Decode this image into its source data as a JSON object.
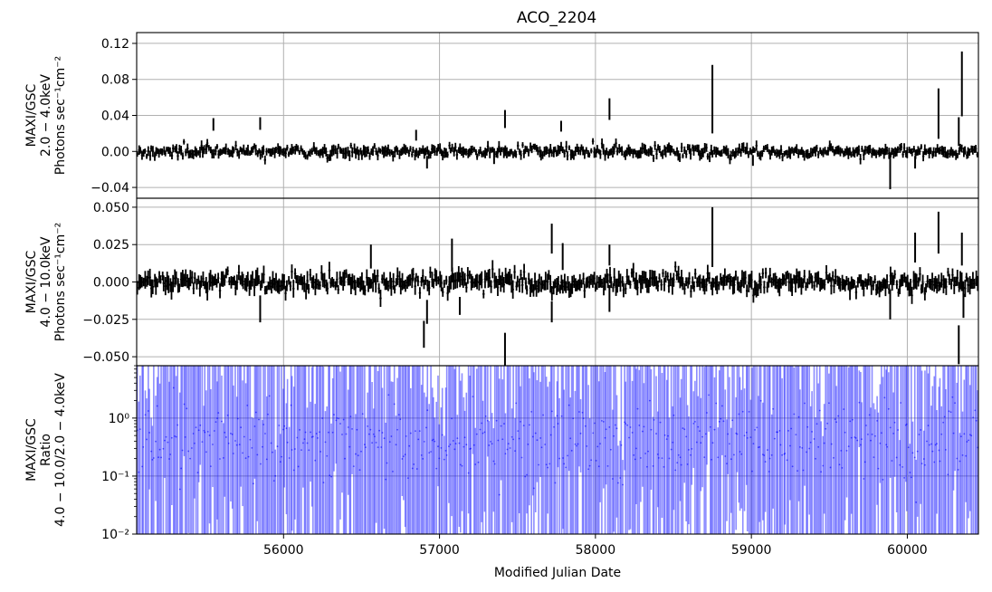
{
  "chart_data": [
    {
      "type": "scatter",
      "panel": "top",
      "title": "ACO_2204",
      "ylabel_lines": [
        "MAXI/GSC",
        "2.0 − 4.0keV",
        "Photons sec⁻¹cm⁻²"
      ],
      "xlim": [
        55058,
        60456
      ],
      "ylim": [
        -0.052,
        0.132
      ],
      "yticks": [
        -0.04,
        0.0,
        0.04,
        0.08,
        0.12
      ],
      "ytick_labels": [
        "−0.04",
        "0.00",
        "0.04",
        "0.08",
        "0.12"
      ],
      "grid": true,
      "series": [
        {
          "color": "#000000",
          "noise": {
            "seed": 11,
            "n": 540,
            "sigma": 0.003,
            "err": 0.0045,
            "spread": 0.003
          },
          "highlight_points": [
            {
              "x": 55550,
              "y": 0.03,
              "err": 0.007
            },
            {
              "x": 55850,
              "y": 0.031,
              "err": 0.007
            },
            {
              "x": 56850,
              "y": 0.018,
              "err": 0.006
            },
            {
              "x": 56920,
              "y": -0.012,
              "err": 0.007
            },
            {
              "x": 57350,
              "y": -0.008,
              "err": 0.006
            },
            {
              "x": 57420,
              "y": 0.036,
              "err": 0.01
            },
            {
              "x": 57780,
              "y": 0.028,
              "err": 0.006
            },
            {
              "x": 58090,
              "y": 0.047,
              "err": 0.012
            },
            {
              "x": 58750,
              "y": 0.058,
              "err": 0.038
            },
            {
              "x": 59010,
              "y": -0.01,
              "err": 0.006
            },
            {
              "x": 59890,
              "y": -0.022,
              "err": 0.02
            },
            {
              "x": 60050,
              "y": -0.012,
              "err": 0.007
            },
            {
              "x": 60200,
              "y": 0.042,
              "err": 0.028
            },
            {
              "x": 60330,
              "y": 0.022,
              "err": 0.016
            },
            {
              "x": 60350,
              "y": 0.075,
              "err": 0.036
            }
          ]
        }
      ]
    },
    {
      "type": "scatter",
      "panel": "middle",
      "ylabel_lines": [
        "MAXI/GSC",
        "4.0 − 10.0keV",
        "Photons sec⁻¹cm⁻²"
      ],
      "xlim": [
        55058,
        60456
      ],
      "ylim": [
        -0.056,
        0.056
      ],
      "yticks": [
        -0.05,
        -0.025,
        0.0,
        0.025,
        0.05
      ],
      "ytick_labels": [
        "−0.050",
        "−0.025",
        "0.000",
        "0.025",
        "0.050"
      ],
      "grid": true,
      "series": [
        {
          "color": "#000000",
          "noise": {
            "seed": 23,
            "n": 540,
            "sigma": 0.003,
            "err": 0.0045,
            "spread": 0.003
          },
          "highlight_points": [
            {
              "x": 55850,
              "y": -0.018,
              "err": 0.009
            },
            {
              "x": 56560,
              "y": 0.017,
              "err": 0.008
            },
            {
              "x": 56900,
              "y": -0.035,
              "err": 0.009
            },
            {
              "x": 56920,
              "y": -0.02,
              "err": 0.008
            },
            {
              "x": 57080,
              "y": 0.018,
              "err": 0.011
            },
            {
              "x": 57130,
              "y": -0.016,
              "err": 0.006
            },
            {
              "x": 57420,
              "y": -0.046,
              "err": 0.012
            },
            {
              "x": 57720,
              "y": 0.029,
              "err": 0.01
            },
            {
              "x": 57720,
              "y": -0.02,
              "err": 0.007
            },
            {
              "x": 57790,
              "y": 0.017,
              "err": 0.009
            },
            {
              "x": 58090,
              "y": -0.011,
              "err": 0.009
            },
            {
              "x": 58090,
              "y": 0.018,
              "err": 0.007
            },
            {
              "x": 58750,
              "y": 0.03,
              "err": 0.02
            },
            {
              "x": 59890,
              "y": -0.015,
              "err": 0.01
            },
            {
              "x": 60050,
              "y": 0.023,
              "err": 0.01
            },
            {
              "x": 60200,
              "y": 0.033,
              "err": 0.014
            },
            {
              "x": 60330,
              "y": -0.042,
              "err": 0.013
            },
            {
              "x": 60350,
              "y": 0.022,
              "err": 0.011
            },
            {
              "x": 60360,
              "y": -0.016,
              "err": 0.008
            }
          ]
        }
      ]
    },
    {
      "type": "scatter",
      "panel": "bottom",
      "ylabel_lines": [
        "MAXI/GSC",
        "Ratio",
        "4.0 − 10.0/2.0 − 4.0keV"
      ],
      "xlabel": "Modified Julian Date",
      "xlim": [
        55058,
        60456
      ],
      "ylim": [
        0.01,
        8.0
      ],
      "yscale": "log",
      "yticks": [
        0.01,
        0.1,
        1.0
      ],
      "ytick_labels": [
        "10⁻²",
        "10⁻¹",
        "10⁰"
      ],
      "xticks": [
        56000,
        57000,
        58000,
        59000,
        60000
      ],
      "xtick_labels": [
        "56000",
        "57000",
        "58000",
        "59000",
        "60000"
      ],
      "grid": true,
      "series": [
        {
          "color": "#0000ff",
          "alpha": 0.45,
          "ratio_noise": {
            "seed": 37,
            "n": 560
          }
        }
      ]
    }
  ]
}
